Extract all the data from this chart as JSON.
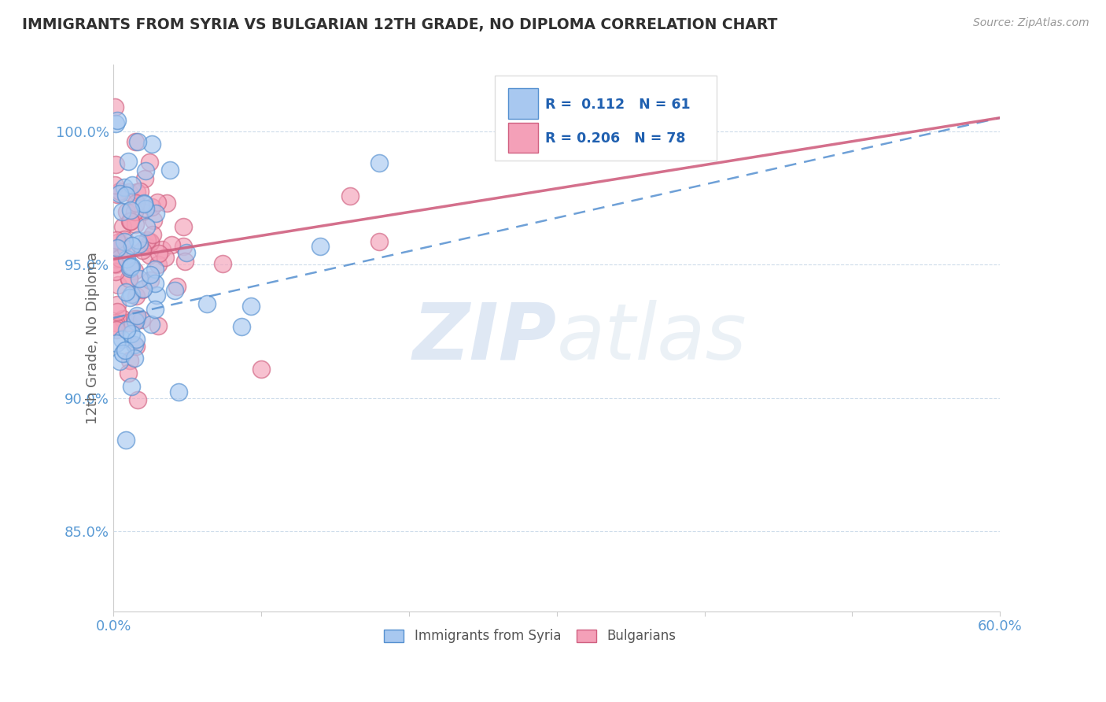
{
  "title": "IMMIGRANTS FROM SYRIA VS BULGARIAN 12TH GRADE, NO DIPLOMA CORRELATION CHART",
  "source": "Source: ZipAtlas.com",
  "ylabel": "12th Grade, No Diploma",
  "xlim": [
    0.0,
    0.6
  ],
  "ylim": [
    0.82,
    1.025
  ],
  "xticks": [
    0.0,
    0.1,
    0.2,
    0.3,
    0.4,
    0.5,
    0.6
  ],
  "xticklabels": [
    "0.0%",
    "",
    "",
    "",
    "",
    "",
    "60.0%"
  ],
  "yticks": [
    0.85,
    0.9,
    0.95,
    1.0
  ],
  "yticklabels": [
    "85.0%",
    "90.0%",
    "95.0%",
    "100.0%"
  ],
  "legend_r1": "R =  0.112",
  "legend_n1": "N = 61",
  "legend_r2": "R = 0.206",
  "legend_n2": "N = 78",
  "color_blue": "#a8c8f0",
  "color_pink": "#f4a0b8",
  "color_blue_line": "#5590d0",
  "color_pink_line": "#d06080",
  "watermark_zip": "ZIP",
  "watermark_atlas": "atlas",
  "background_color": "#ffffff",
  "grid_color": "#c8d8e8",
  "series1_label": "Immigrants from Syria",
  "series2_label": "Bulgarians",
  "seed": 123,
  "n1": 61,
  "n2": 78,
  "blue_line_x0": 0.0,
  "blue_line_y0": 0.93,
  "blue_line_x1": 0.6,
  "blue_line_y1": 1.005,
  "pink_line_x0": 0.0,
  "pink_line_y0": 0.952,
  "pink_line_x1": 0.6,
  "pink_line_y1": 1.005,
  "tick_color": "#5b9bd5",
  "title_color": "#303030",
  "source_color": "#999999",
  "ylabel_color": "#666666"
}
